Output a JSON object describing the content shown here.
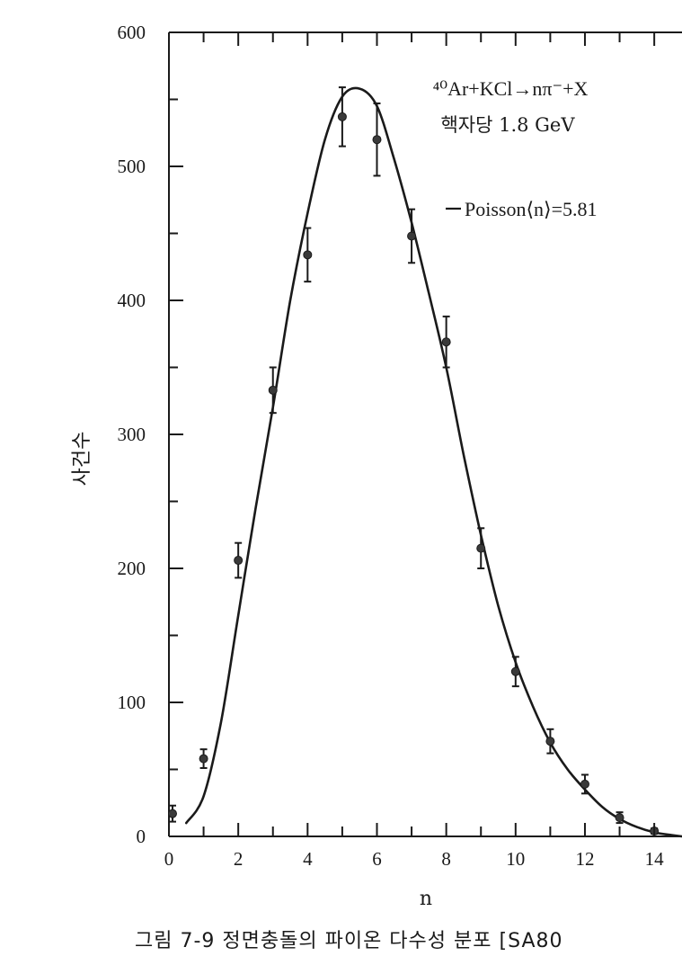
{
  "chart_data": {
    "type": "scatter",
    "xlabel": "n",
    "ylabel": "사건수",
    "xlim": [
      0,
      14.8
    ],
    "ylim": [
      0,
      600
    ],
    "x_ticks": [
      "0",
      "2",
      "4",
      "6",
      "8",
      "10",
      "12",
      "14"
    ],
    "y_ticks": [
      "0",
      "100",
      "200",
      "300",
      "400",
      "500",
      "600"
    ],
    "annotation_reaction": "⁴⁰Ar+KCl→nπ⁻+X",
    "annotation_energy": "핵자당 1.8 GeV",
    "legend_label": "Poisson⟨n⟩=5.81",
    "grid": false,
    "series": [
      {
        "name": "data",
        "kind": "points_with_errorbars",
        "x": [
          0,
          1,
          2,
          3,
          4,
          5,
          6,
          7,
          8,
          9,
          10,
          11,
          12,
          13,
          14
        ],
        "y": [
          17,
          58,
          206,
          333,
          434,
          537,
          520,
          448,
          369,
          215,
          123,
          71,
          39,
          14,
          4
        ],
        "err": [
          6,
          7,
          13,
          17,
          20,
          22,
          27,
          20,
          19,
          15,
          11,
          9,
          7,
          4,
          2
        ]
      },
      {
        "name": "Poisson⟨n⟩=5.81",
        "kind": "curve",
        "x": [
          0.5,
          1,
          1.5,
          2,
          2.5,
          3,
          3.5,
          4,
          4.5,
          5,
          5.5,
          6,
          6.5,
          7,
          7.5,
          8,
          8.5,
          9,
          9.5,
          10,
          10.5,
          11,
          11.5,
          12,
          12.5,
          13,
          13.5,
          14,
          14.5,
          14.8
        ],
        "y": [
          10,
          30,
          85,
          165,
          245,
          320,
          400,
          465,
          520,
          552,
          558,
          545,
          505,
          458,
          405,
          350,
          285,
          225,
          172,
          130,
          97,
          70,
          50,
          35,
          22,
          13,
          7,
          3,
          1,
          0
        ]
      }
    ],
    "color": "#1a1a1a"
  },
  "caption": "그림 7-9  정면충돌의 파이온 다수성 분포 [SA80"
}
